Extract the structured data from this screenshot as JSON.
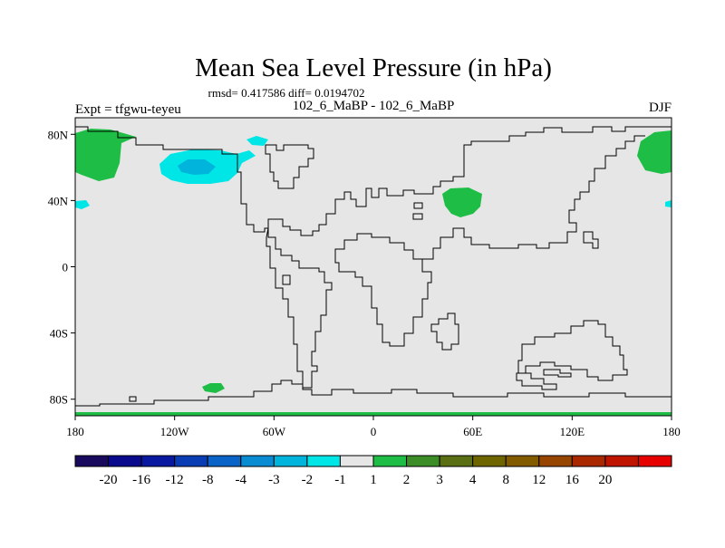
{
  "title": "Mean Sea Level Pressure (in hPa)",
  "stats_line": "rmsd= 0.417586 diff= 0.0194702",
  "comparison": "102_6_MaBP - 102_6_MaBP",
  "experiment": "Expt = tfgwu-teyeu",
  "season": "DJF",
  "map": {
    "background_color": "#e6e6e6",
    "lon_labels": [
      "180",
      "120W",
      "60W",
      "0",
      "60E",
      "120E",
      "180"
    ],
    "lat_labels": [
      "80N",
      "40N",
      "0",
      "40S",
      "80S"
    ]
  },
  "colorbar": {
    "colors": [
      "#1a0a5e",
      "#0a0a8c",
      "#0a1aa0",
      "#0a3cb4",
      "#0a64c8",
      "#0a8cd2",
      "#00b4dc",
      "#00e6e6",
      "#e6e6e6",
      "#1ebe46",
      "#3c8c28",
      "#5a6e14",
      "#6e6400",
      "#825a00",
      "#964600",
      "#aa2800",
      "#be1400",
      "#e60000"
    ],
    "labels": [
      "-20",
      "-16",
      "-12",
      "-8",
      "-4",
      "-3",
      "-2",
      "-1",
      "1",
      "2",
      "3",
      "4",
      "8",
      "12",
      "16",
      "20"
    ]
  }
}
